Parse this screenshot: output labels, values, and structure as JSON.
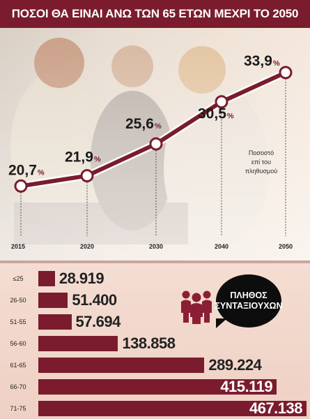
{
  "header": {
    "title": "ΠΟΣΟΙ ΘΑ ΕΙΝΑΙ ΑΝΩ ΤΩΝ 65 ΕΤΩΝ ΜΕΧΡΙ ΤΟ 2050"
  },
  "note": [
    "Ποσοστό",
    "επί του",
    "πληθυσμού"
  ],
  "legend_bubble": [
    "ΠΛΗΘΟΣ",
    "ΣΥΝΤΑΞΙΟΥΧΩΝ"
  ],
  "colors": {
    "accent": "#7a1c2d",
    "bubble": "#0d0d0d"
  },
  "icon": "people-group-icon",
  "chart_data": [
    {
      "type": "line",
      "x": [
        "2015",
        "2020",
        "2030",
        "2040",
        "2050"
      ],
      "series": [
        {
          "values": [
            20.7,
            21.9,
            25.6,
            30.5,
            33.9
          ],
          "labels": [
            "20,7",
            "21,9",
            "25,6",
            "30,5",
            "33,9"
          ],
          "unit": "%"
        }
      ],
      "ylim": [
        17,
        36
      ],
      "grid": false
    },
    {
      "type": "bar",
      "orientation": "horizontal",
      "categories": [
        "≤25",
        "26-50",
        "51-55",
        "56-60",
        "61-65",
        "66-70",
        "71-75"
      ],
      "values": [
        28919,
        51400,
        57694,
        138858,
        289224,
        415119,
        467138
      ],
      "labels": [
        "28.919",
        "51.400",
        "57.694",
        "138.858",
        "289.224",
        "415.119",
        "467.138"
      ]
    }
  ]
}
